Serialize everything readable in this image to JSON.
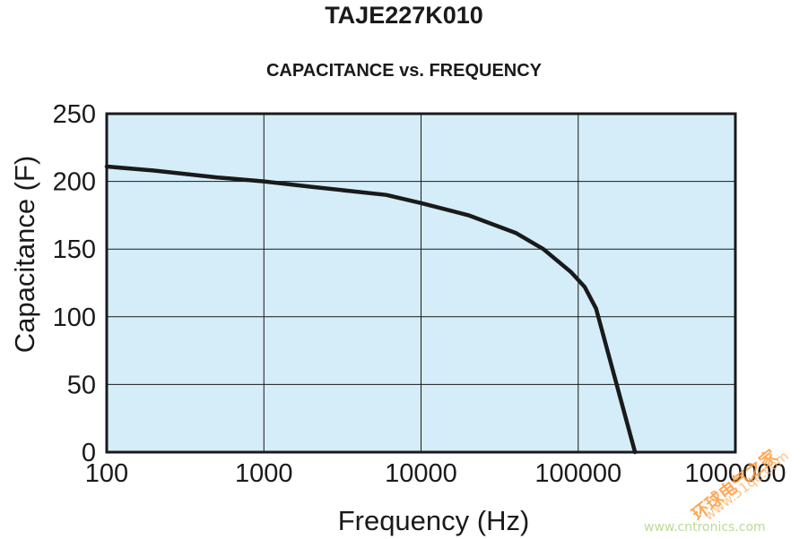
{
  "chart_data": {
    "type": "line",
    "title": "TAJE227K010",
    "subtitle": "CAPACITANCE vs. FREQUENCY",
    "xlabel": "Frequency (Hz)",
    "ylabel": "Capacitance (F)",
    "x_scale": "log",
    "xlim": [
      100,
      1000000
    ],
    "ylim": [
      0,
      250
    ],
    "x_ticks": [
      100,
      1000,
      10000,
      100000,
      1000000
    ],
    "x_tick_labels": [
      "100",
      "1000",
      "10000",
      "100000",
      "1000000"
    ],
    "y_ticks": [
      0,
      50,
      100,
      150,
      200,
      250
    ],
    "y_tick_labels": [
      "0",
      "50",
      "100",
      "150",
      "200",
      "250"
    ],
    "grid": true,
    "plot_background": "#d4edf9",
    "line_color": "#1a1a1a",
    "series": [
      {
        "x": [
          100,
          200,
          500,
          1000,
          2000,
          6000,
          10000,
          20000,
          40000,
          60000,
          90000,
          110000,
          130000,
          230000
        ],
        "y": [
          211,
          208,
          203,
          200,
          196,
          190,
          184,
          175,
          162,
          150,
          133,
          122,
          106,
          0
        ]
      }
    ]
  },
  "watermark": {
    "cn_text": "环球电气之家",
    "url_text": "www.51qe.com",
    "url2_text": "www.cntronics.com"
  }
}
